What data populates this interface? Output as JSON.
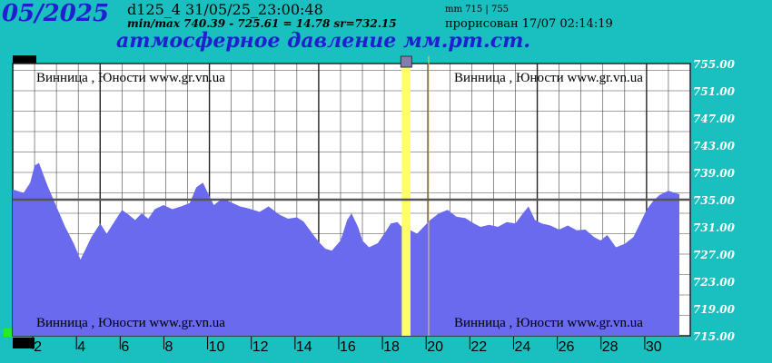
{
  "header": {
    "month": "05/2025",
    "code": "d125_4   31/05/25_23:00:48",
    "minmax": "min/max   740.39 - 725.61 = 14.78         sr=732.15",
    "range_note": "mm 715 | 755",
    "drawn": "прорисован 17/07 02:14:19",
    "title": "атмосферное давление мм.рт.ст."
  },
  "watermark": "Винница , Юности  www.gr.vn.ua",
  "colors": {
    "background": "#1abfbf",
    "fill": "#6a6aee",
    "highlight": "#ffff66",
    "mean_line": "#555555",
    "grid": "#444444",
    "accent": "#1f1fd0"
  },
  "chart_data": {
    "type": "area",
    "title": "атмосферное давление мм.рт.ст.",
    "xlabel": "",
    "ylabel": "",
    "xlim": [
      1,
      32
    ],
    "ylim": [
      715,
      755
    ],
    "mean": 735,
    "x_ticks": [
      2,
      4,
      6,
      8,
      10,
      12,
      14,
      16,
      18,
      20,
      22,
      24,
      26,
      28,
      30
    ],
    "y_ticks": [
      "755.00",
      "751.00",
      "747.00",
      "743.00",
      "739.00",
      "735.00",
      "731.00",
      "727.00",
      "723.00",
      "719.00",
      "715.00"
    ],
    "highlight_day": [
      18.8,
      19.2
    ],
    "grid": true,
    "points": [
      [
        1.0,
        736.5
      ],
      [
        1.5,
        736.0
      ],
      [
        1.8,
        737.5
      ],
      [
        2.0,
        740.0
      ],
      [
        2.2,
        740.4
      ],
      [
        2.6,
        737.0
      ],
      [
        3.0,
        734.0
      ],
      [
        3.4,
        731.0
      ],
      [
        3.8,
        728.5
      ],
      [
        4.1,
        726.2
      ],
      [
        4.3,
        727.5
      ],
      [
        4.6,
        729.5
      ],
      [
        5.0,
        731.5
      ],
      [
        5.3,
        730.0
      ],
      [
        5.6,
        731.5
      ],
      [
        5.8,
        732.5
      ],
      [
        6.0,
        733.5
      ],
      [
        6.3,
        732.8
      ],
      [
        6.6,
        732.0
      ],
      [
        6.9,
        733.0
      ],
      [
        7.2,
        732.2
      ],
      [
        7.5,
        733.6
      ],
      [
        7.9,
        734.2
      ],
      [
        8.3,
        733.6
      ],
      [
        8.7,
        734.0
      ],
      [
        9.1,
        734.5
      ],
      [
        9.4,
        736.8
      ],
      [
        9.7,
        737.5
      ],
      [
        10.0,
        735.5
      ],
      [
        10.2,
        734.2
      ],
      [
        10.6,
        735.2
      ],
      [
        11.0,
        734.6
      ],
      [
        11.4,
        734.0
      ],
      [
        11.8,
        733.7
      ],
      [
        12.3,
        733.2
      ],
      [
        12.7,
        734.0
      ],
      [
        13.2,
        732.8
      ],
      [
        13.6,
        732.2
      ],
      [
        14.0,
        732.4
      ],
      [
        14.3,
        731.8
      ],
      [
        14.6,
        730.5
      ],
      [
        15.0,
        728.8
      ],
      [
        15.3,
        727.8
      ],
      [
        15.6,
        727.5
      ],
      [
        16.0,
        729.0
      ],
      [
        16.3,
        732.0
      ],
      [
        16.5,
        733.0
      ],
      [
        16.8,
        731.0
      ],
      [
        17.0,
        729.0
      ],
      [
        17.3,
        728.0
      ],
      [
        17.7,
        728.6
      ],
      [
        18.0,
        730.0
      ],
      [
        18.3,
        731.5
      ],
      [
        18.6,
        731.7
      ],
      [
        18.8,
        731.0
      ],
      [
        19.2,
        730.5
      ],
      [
        19.5,
        730.0
      ],
      [
        19.8,
        731.0
      ],
      [
        20.1,
        732.0
      ],
      [
        20.5,
        733.0
      ],
      [
        20.9,
        733.5
      ],
      [
        21.3,
        732.5
      ],
      [
        21.7,
        732.3
      ],
      [
        22.1,
        731.5
      ],
      [
        22.4,
        731.0
      ],
      [
        22.8,
        731.3
      ],
      [
        23.2,
        731.0
      ],
      [
        23.6,
        731.7
      ],
      [
        24.0,
        731.5
      ],
      [
        24.3,
        732.8
      ],
      [
        24.6,
        734.0
      ],
      [
        24.9,
        732.0
      ],
      [
        25.2,
        731.5
      ],
      [
        25.6,
        731.2
      ],
      [
        26.0,
        730.6
      ],
      [
        26.4,
        731.2
      ],
      [
        26.8,
        730.5
      ],
      [
        27.2,
        730.6
      ],
      [
        27.6,
        729.5
      ],
      [
        27.9,
        729.0
      ],
      [
        28.2,
        729.8
      ],
      [
        28.6,
        728.0
      ],
      [
        29.0,
        728.5
      ],
      [
        29.4,
        729.5
      ],
      [
        29.7,
        731.5
      ],
      [
        30.0,
        733.5
      ],
      [
        30.3,
        734.8
      ],
      [
        30.6,
        735.7
      ],
      [
        31.0,
        736.3
      ],
      [
        31.5,
        735.8
      ]
    ]
  }
}
